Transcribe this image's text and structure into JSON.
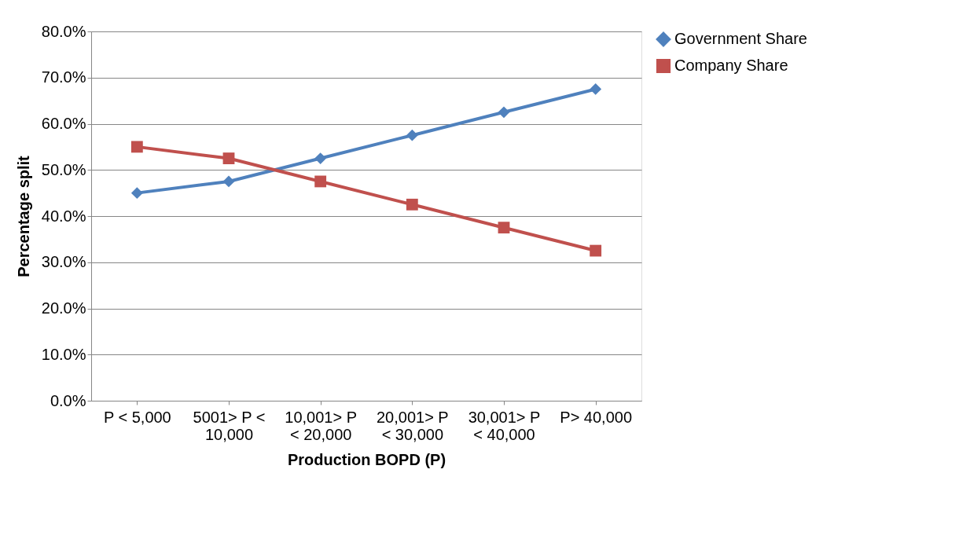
{
  "chart_data": {
    "type": "line",
    "xlabel": "Production BOPD (P)",
    "ylabel": "Percentage split",
    "categories": [
      "P < 5,000",
      "5001> P < 10,000",
      "10,001> P < 20,000",
      "20,001> P < 30,000",
      "30,001> P < 40,000",
      "P> 40,000"
    ],
    "series": [
      {
        "name": "Government Share",
        "color": "#4f81bd",
        "marker": "diamond",
        "values": [
          45.0,
          47.5,
          52.5,
          57.5,
          62.5,
          67.5
        ]
      },
      {
        "name": "Company Share",
        "color": "#c0504d",
        "marker": "square",
        "values": [
          55.0,
          52.5,
          47.5,
          42.5,
          37.5,
          32.5
        ]
      }
    ],
    "ylim": [
      0,
      80
    ],
    "yticks": [
      {
        "value": 0,
        "label": "0.0%"
      },
      {
        "value": 10,
        "label": "10.0%"
      },
      {
        "value": 20,
        "label": "20.0%"
      },
      {
        "value": 30,
        "label": "30.0%"
      },
      {
        "value": 40,
        "label": "40.0%"
      },
      {
        "value": 50,
        "label": "50.0%"
      },
      {
        "value": 60,
        "label": "60.0%"
      },
      {
        "value": 70,
        "label": "70.0%"
      },
      {
        "value": 80,
        "label": "80.0%"
      }
    ],
    "grid": "y",
    "legend": "right",
    "line_style": "solid"
  }
}
